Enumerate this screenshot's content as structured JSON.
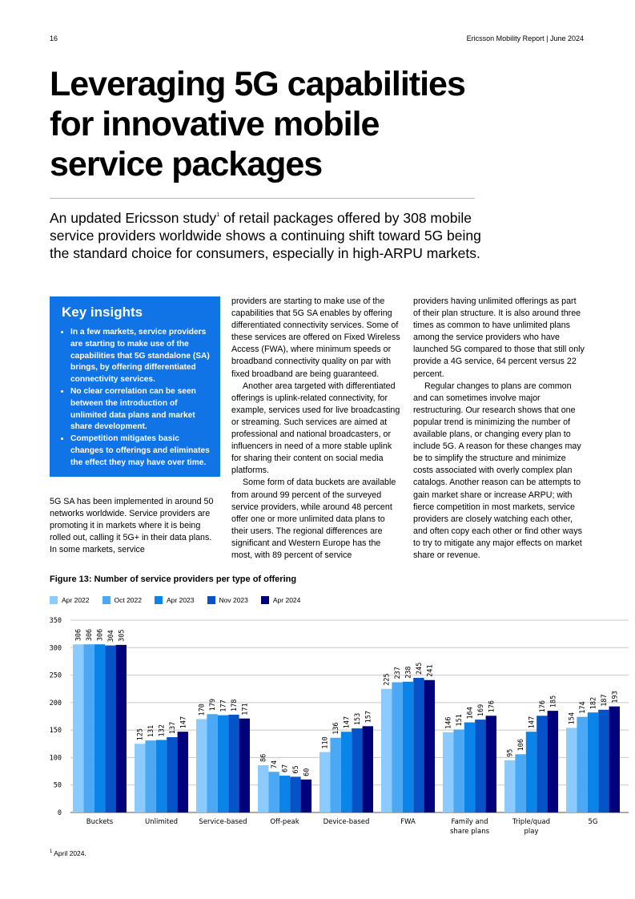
{
  "header": {
    "page_number": "16",
    "running_title": "Ericsson Mobility Report  |  June 2024"
  },
  "title": "Leveraging 5G capabilities for innovative mobile service packages",
  "intro": {
    "before": "An updated Ericsson study",
    "sup": "1",
    "after": " of retail packages offered by 308 mobile service providers worldwide shows a continuing shift toward 5G being the standard choice for consumers, especially in high-ARPU markets."
  },
  "key_insights": {
    "heading": "Key insights",
    "items": [
      "In a few markets, service providers are starting to make use of the capabilities that 5G standalone (SA) brings, by offering differentiated connectivity services.",
      "No clear correlation can be seen between the introduction of unlimited data plans and market share development.",
      "Competition mitigates basic changes to offerings and eliminates the effect they may have over time."
    ]
  },
  "body": {
    "col1": [
      "5G SA has been implemented in around 50 networks worldwide. Service providers are promoting it in markets where it is being rolled out, calling it 5G+ in their data plans. In some markets, service"
    ],
    "col2": [
      "providers are starting to make use of the capabilities that 5G SA enables by offering differentiated connectivity services. Some of these services are offered on Fixed Wireless Access (FWA), where minimum speeds or broadband connectivity quality on par with fixed broadband are being guaranteed.",
      "Another area targeted with differentiated offerings is uplink-related connectivity, for example, services used for live broadcasting or streaming. Such services are aimed at professional and national broadcasters, or influencers in need of a more stable uplink for sharing their content on social media platforms.",
      "Some form of data buckets are available from around 99 percent of the surveyed service providers, while around 48 percent offer one or more unlimited data plans to their users. The regional differences are significant and Western Europe has the most, with 89 percent of service"
    ],
    "col3": [
      "providers having unlimited offerings as part of their plan structure. It is also around three times as common to have unlimited plans among the service providers who have launched 5G compared to those that still only provide a 4G service, 64 percent versus 22 percent.",
      "Regular changes to plans are common and can sometimes involve major restructuring. Our research shows that one popular trend is minimizing the number of available plans, or changing every plan to include 5G. A reason for these changes may be to simplify the structure and minimize costs associated with overly complex plan catalogs. Another reason can be attempts to gain market share or increase ARPU; with fierce competition in most markets, service providers are closely watching each other, and often copy each other or find other ways to try to mitigate any major effects on market share or revenue."
    ]
  },
  "chart_data": {
    "type": "bar",
    "title": "Figure 13: Number of service providers per type of offering",
    "categories": [
      "Buckets",
      "Unlimited",
      "Service-based",
      "Off-peak",
      "Device-based",
      "FWA",
      "Family and share plans",
      "Triple/quad play",
      "5G"
    ],
    "category_lines": [
      [
        "Buckets"
      ],
      [
        "Unlimited"
      ],
      [
        "Service-based"
      ],
      [
        "Off-peak"
      ],
      [
        "Device-based"
      ],
      [
        "FWA"
      ],
      [
        "Family and",
        "share plans"
      ],
      [
        "Triple/quad",
        "play"
      ],
      [
        "5G"
      ]
    ],
    "series": [
      {
        "name": "Apr 2022",
        "color": "#8ccbff",
        "values": [
          306,
          125,
          170,
          86,
          110,
          225,
          146,
          95,
          154
        ]
      },
      {
        "name": "Oct 2022",
        "color": "#4aa8f5",
        "values": [
          306,
          131,
          179,
          74,
          136,
          237,
          151,
          106,
          174
        ]
      },
      {
        "name": "Apr 2023",
        "color": "#0a84e8",
        "values": [
          306,
          132,
          177,
          67,
          147,
          238,
          164,
          147,
          182
        ]
      },
      {
        "name": "Nov 2023",
        "color": "#0553c6",
        "values": [
          304,
          137,
          178,
          65,
          153,
          245,
          169,
          176,
          187
        ]
      },
      {
        "name": "Apr 2024",
        "color": "#00007d",
        "values": [
          305,
          147,
          171,
          60,
          157,
          241,
          176,
          185,
          193
        ]
      }
    ],
    "ylim": [
      0,
      350
    ],
    "yticks": [
      0,
      50,
      100,
      150,
      200,
      250,
      300,
      350
    ],
    "grid": true,
    "legend": "top-left",
    "xlabel": "",
    "ylabel": ""
  },
  "footnote": {
    "sup": "1",
    "text": " April 2024."
  }
}
